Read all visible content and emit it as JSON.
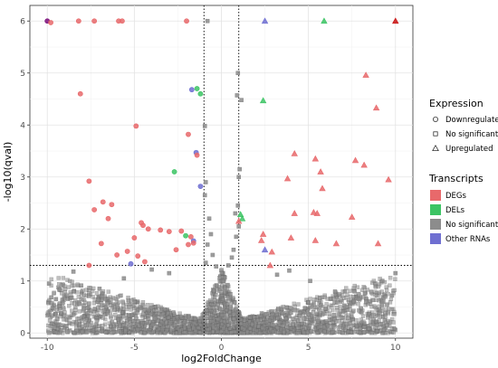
{
  "chart_data": {
    "type": "scatter",
    "title": "",
    "xlabel": "log2FoldChange",
    "ylabel": "-log10(qval)",
    "xlim": [
      -11,
      11
    ],
    "ylim": [
      -0.1,
      6.3
    ],
    "x_ticks": [
      -10,
      -5,
      0,
      5,
      10
    ],
    "y_ticks": [
      0,
      1,
      2,
      3,
      4,
      5,
      6
    ],
    "x_tick_labels": [
      "-10",
      "-5",
      "0",
      "5",
      "10"
    ],
    "y_tick_labels": [
      "0",
      "1",
      "2",
      "3",
      "4",
      "5",
      "6"
    ],
    "grid": true,
    "reference_lines": {
      "vertical": [
        -1,
        1
      ],
      "horizontal": [
        1.3
      ]
    },
    "colors": {
      "DEGs": "#e8696b",
      "DELs": "#3cc464",
      "No significant": "#8c8c8c",
      "Other RNAs": "#6f6fd1",
      "deg_dark": "#c81010",
      "del_dark": "#7a0d7a"
    },
    "legend": {
      "placement": "right",
      "expression": {
        "title": "Expression",
        "items": [
          {
            "label": "Downregulated",
            "shape": "circle"
          },
          {
            "label": "No significant",
            "shape": "square"
          },
          {
            "label": "Upregulated",
            "shape": "triangle"
          }
        ]
      },
      "transcripts": {
        "title": "Transcripts",
        "items": [
          {
            "label": "DEGs",
            "color": "#e8696b"
          },
          {
            "label": "DELs",
            "color": "#3cc464"
          },
          {
            "label": "No significant",
            "color": "#8c8c8c"
          },
          {
            "label": "Other RNAs",
            "color": "#6f6fd1"
          }
        ]
      }
    },
    "series": [
      {
        "expression": "Downregulated",
        "shape": "circle",
        "points": [
          {
            "x": -10,
            "y": 6,
            "t": "del_dark"
          },
          {
            "x": -9.8,
            "y": 5.97,
            "t": "DEGs"
          },
          {
            "x": -8.2,
            "y": 6,
            "t": "DEGs"
          },
          {
            "x": -7.3,
            "y": 6,
            "t": "DEGs"
          },
          {
            "x": -5.9,
            "y": 6,
            "t": "DEGs"
          },
          {
            "x": -5.7,
            "y": 6,
            "t": "DEGs"
          },
          {
            "x": -2,
            "y": 6,
            "t": "DEGs"
          },
          {
            "x": -8.1,
            "y": 4.6,
            "t": "DEGs"
          },
          {
            "x": -1.7,
            "y": 4.68,
            "t": "Other RNAs"
          },
          {
            "x": -1.4,
            "y": 4.7,
            "t": "DELs"
          },
          {
            "x": -1.2,
            "y": 4.6,
            "t": "DELs"
          },
          {
            "x": -4.9,
            "y": 3.98,
            "t": "DEGs"
          },
          {
            "x": -1.9,
            "y": 3.82,
            "t": "DEGs"
          },
          {
            "x": -1.45,
            "y": 3.47,
            "t": "Other RNAs"
          },
          {
            "x": -1.4,
            "y": 3.42,
            "t": "DEGs"
          },
          {
            "x": -2.7,
            "y": 3.1,
            "t": "DELs"
          },
          {
            "x": -7.6,
            "y": 2.92,
            "t": "DEGs"
          },
          {
            "x": -1.2,
            "y": 2.82,
            "t": "Other RNAs"
          },
          {
            "x": -6.8,
            "y": 2.52,
            "t": "DEGs"
          },
          {
            "x": -6.3,
            "y": 2.47,
            "t": "DEGs"
          },
          {
            "x": -7.3,
            "y": 2.37,
            "t": "DEGs"
          },
          {
            "x": -6.5,
            "y": 2.2,
            "t": "DEGs"
          },
          {
            "x": -4.6,
            "y": 2.12,
            "t": "DEGs"
          },
          {
            "x": -4.5,
            "y": 2.07,
            "t": "DEGs"
          },
          {
            "x": -4.2,
            "y": 2.0,
            "t": "DEGs"
          },
          {
            "x": -3.5,
            "y": 1.98,
            "t": "DEGs"
          },
          {
            "x": -3.0,
            "y": 1.95,
            "t": "DEGs"
          },
          {
            "x": -2.3,
            "y": 1.96,
            "t": "DEGs"
          },
          {
            "x": -2.05,
            "y": 1.87,
            "t": "DELs"
          },
          {
            "x": -1.75,
            "y": 1.85,
            "t": "DEGs"
          },
          {
            "x": -1.6,
            "y": 1.77,
            "t": "Other RNAs"
          },
          {
            "x": -5.0,
            "y": 1.83,
            "t": "DEGs"
          },
          {
            "x": -1.9,
            "y": 1.7,
            "t": "DEGs"
          },
          {
            "x": -1.6,
            "y": 1.73,
            "t": "DEGs"
          },
          {
            "x": -6.9,
            "y": 1.72,
            "t": "DEGs"
          },
          {
            "x": -2.6,
            "y": 1.6,
            "t": "DEGs"
          },
          {
            "x": -5.4,
            "y": 1.57,
            "t": "DEGs"
          },
          {
            "x": -6.0,
            "y": 1.5,
            "t": "DEGs"
          },
          {
            "x": -4.8,
            "y": 1.48,
            "t": "DEGs"
          },
          {
            "x": -4.4,
            "y": 1.37,
            "t": "DEGs"
          },
          {
            "x": -5.2,
            "y": 1.33,
            "t": "Other RNAs"
          },
          {
            "x": -7.6,
            "y": 1.3,
            "t": "DEGs"
          }
        ]
      },
      {
        "expression": "Upregulated",
        "shape": "triangle",
        "points": [
          {
            "x": 2.5,
            "y": 6,
            "t": "Other RNAs"
          },
          {
            "x": 5.9,
            "y": 6,
            "t": "DELs"
          },
          {
            "x": 10,
            "y": 6,
            "t": "deg_dark"
          },
          {
            "x": 8.3,
            "y": 4.96,
            "t": "DEGs"
          },
          {
            "x": 2.4,
            "y": 4.47,
            "t": "DELs"
          },
          {
            "x": 8.9,
            "y": 4.33,
            "t": "DEGs"
          },
          {
            "x": 4.2,
            "y": 3.45,
            "t": "DEGs"
          },
          {
            "x": 5.4,
            "y": 3.35,
            "t": "DEGs"
          },
          {
            "x": 7.7,
            "y": 3.32,
            "t": "DEGs"
          },
          {
            "x": 8.2,
            "y": 3.23,
            "t": "DEGs"
          },
          {
            "x": 5.7,
            "y": 3.1,
            "t": "DEGs"
          },
          {
            "x": 3.8,
            "y": 2.97,
            "t": "DEGs"
          },
          {
            "x": 9.6,
            "y": 2.95,
            "t": "DEGs"
          },
          {
            "x": 5.8,
            "y": 2.78,
            "t": "DEGs"
          },
          {
            "x": 4.2,
            "y": 2.3,
            "t": "DEGs"
          },
          {
            "x": 5.3,
            "y": 2.32,
            "t": "DEGs"
          },
          {
            "x": 5.5,
            "y": 2.3,
            "t": "DEGs"
          },
          {
            "x": 1.1,
            "y": 2.28,
            "t": "DELs"
          },
          {
            "x": 1.2,
            "y": 2.2,
            "t": "DELs"
          },
          {
            "x": 7.5,
            "y": 2.23,
            "t": "DEGs"
          },
          {
            "x": 1.0,
            "y": 2.15,
            "t": "DEGs"
          },
          {
            "x": 2.4,
            "y": 1.9,
            "t": "DEGs"
          },
          {
            "x": 2.3,
            "y": 1.78,
            "t": "DEGs"
          },
          {
            "x": 4.0,
            "y": 1.83,
            "t": "DEGs"
          },
          {
            "x": 5.4,
            "y": 1.78,
            "t": "DEGs"
          },
          {
            "x": 6.6,
            "y": 1.72,
            "t": "DEGs"
          },
          {
            "x": 9.0,
            "y": 1.72,
            "t": "DEGs"
          },
          {
            "x": 2.5,
            "y": 1.6,
            "t": "Other RNAs"
          },
          {
            "x": 2.9,
            "y": 1.56,
            "t": "DEGs"
          },
          {
            "x": 2.8,
            "y": 1.3,
            "t": "DEGs"
          }
        ]
      },
      {
        "expression": "No significant",
        "shape": "square",
        "color_key": "No significant",
        "points": [
          {
            "x": -0.8,
            "y": 6.0
          },
          {
            "x": 0.95,
            "y": 5.0
          },
          {
            "x": 0.9,
            "y": 4.57
          },
          {
            "x": 1.15,
            "y": 4.48
          },
          {
            "x": -0.95,
            "y": 3.98
          },
          {
            "x": 1.05,
            "y": 3.15
          },
          {
            "x": 1.0,
            "y": 3.0
          },
          {
            "x": -0.9,
            "y": 2.9
          },
          {
            "x": -0.95,
            "y": 2.65
          },
          {
            "x": 0.95,
            "y": 2.45
          },
          {
            "x": 0.8,
            "y": 2.3
          },
          {
            "x": -0.7,
            "y": 2.2
          },
          {
            "x": 1.0,
            "y": 2.05
          },
          {
            "x": -0.6,
            "y": 1.9
          },
          {
            "x": 0.85,
            "y": 1.85
          },
          {
            "x": -0.8,
            "y": 1.7
          },
          {
            "x": 0.7,
            "y": 1.6
          },
          {
            "x": -0.5,
            "y": 1.5
          },
          {
            "x": 0.6,
            "y": 1.45
          },
          {
            "x": -0.9,
            "y": 1.35
          },
          {
            "x": 0.4,
            "y": 1.3
          },
          {
            "x": -0.3,
            "y": 1.28
          },
          {
            "x": -8.5,
            "y": 1.18
          },
          {
            "x": 10,
            "y": 1.15
          },
          {
            "x": -9.9,
            "y": 0.95
          },
          {
            "x": 9.8,
            "y": 0.72
          },
          {
            "x": -9.5,
            "y": 0.65
          },
          {
            "x": 9.3,
            "y": 0.6
          },
          {
            "x": -4,
            "y": 1.22
          },
          {
            "x": 3.9,
            "y": 1.2
          },
          {
            "x": -5.6,
            "y": 1.05
          },
          {
            "x": 5.1,
            "y": 1.0
          },
          {
            "x": -7.0,
            "y": 0.85
          },
          {
            "x": 7.1,
            "y": 0.8
          },
          {
            "x": -3.0,
            "y": 1.15
          },
          {
            "x": 3.2,
            "y": 1.12
          }
        ]
      }
    ]
  }
}
